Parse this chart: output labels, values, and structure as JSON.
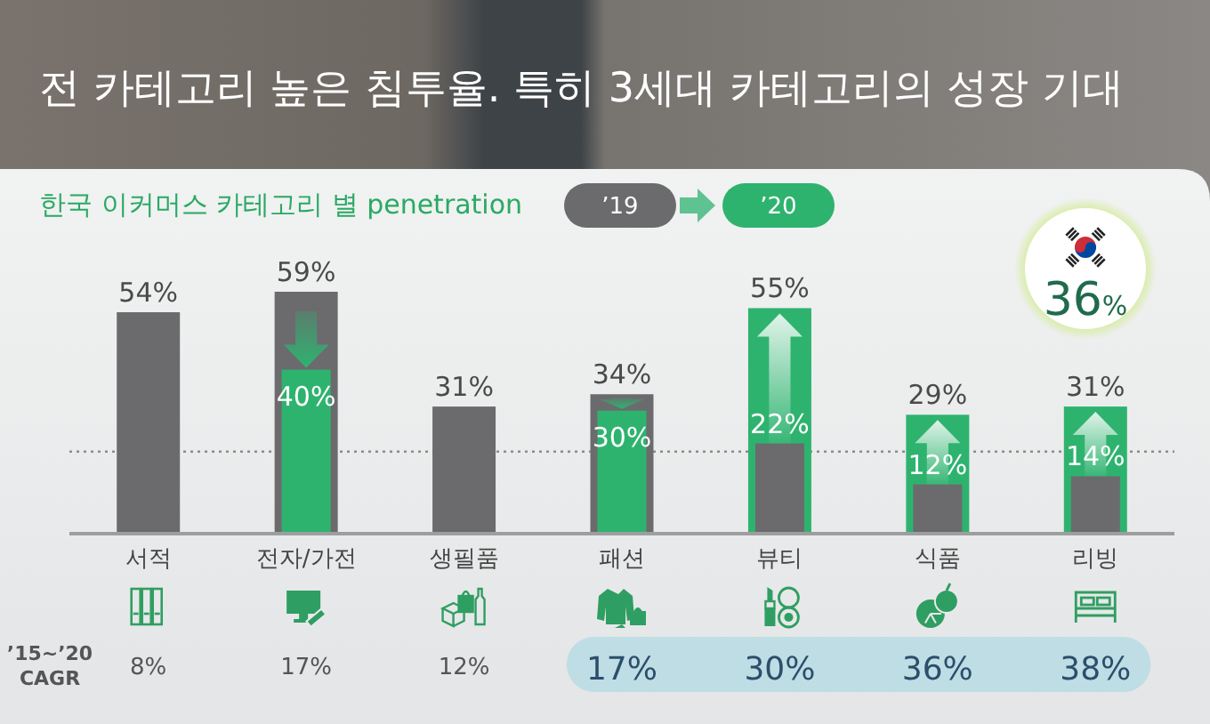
{
  "chart_data": {
    "type": "bar",
    "title": "전 카테고리 높은 침투율. 특히 3세대 카테고리의 성장 기대",
    "subtitle": "한국 이커머스 카테고리 별 penetration",
    "categories": [
      "서적",
      "전자/가전",
      "생필품",
      "패션",
      "뷰티",
      "식품",
      "리빙"
    ],
    "series": [
      {
        "name": "’19",
        "color": "#6b6b6e",
        "values": [
          54,
          59,
          31,
          34,
          22,
          12,
          14
        ],
        "value_labels": [
          "54%",
          "59%",
          "31%",
          "34%",
          "22%",
          "12%",
          "14%"
        ]
      },
      {
        "name": "’20",
        "color": "#2eb36f",
        "values": [
          null,
          40,
          null,
          30,
          55,
          29,
          31
        ],
        "value_labels": [
          null,
          "40%",
          null,
          "30%",
          "55%",
          "29%",
          "31%"
        ]
      }
    ],
    "tick_labels": "x",
    "legend": "top",
    "ref_lines": [
      {
        "axis": "y",
        "value": 20,
        "color": "#8c8c8c",
        "line_style": "dotted"
      }
    ],
    "annotations": [
      "36%",
      "’15~’20 CAGR",
      "8%",
      "17%",
      "12%",
      "17%",
      "30%",
      "36%",
      "38%"
    ]
  }
}
